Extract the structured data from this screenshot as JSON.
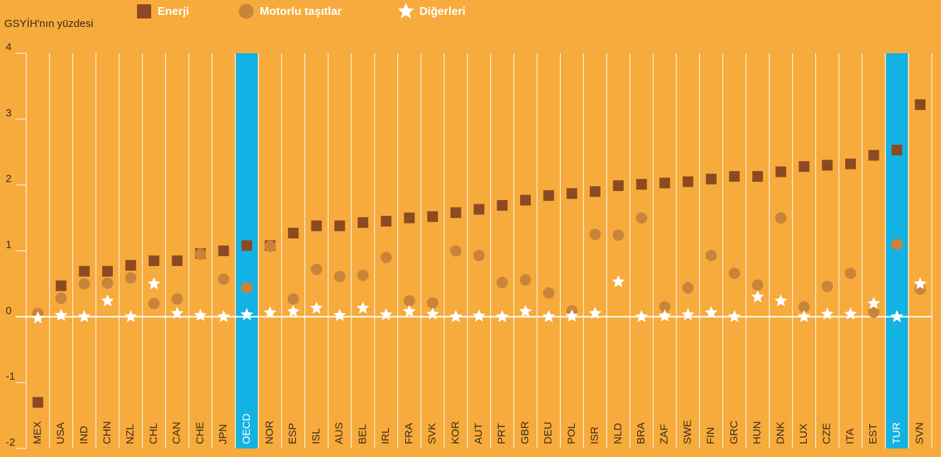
{
  "chart_data": {
    "type": "scatter",
    "ylabel": "GSYİH'nın yüzdesi",
    "categories": [
      "MEX",
      "USA",
      "IND",
      "CHN",
      "NZL",
      "CHL",
      "CAN",
      "CHE",
      "JPN",
      "OECD",
      "NOR",
      "ESP",
      "ISL",
      "AUS",
      "BEL",
      "IRL",
      "FRA",
      "SVK",
      "KOR",
      "AUT",
      "PRT",
      "GBR",
      "DEU",
      "POL",
      "ISR",
      "NLD",
      "BRA",
      "ZAF",
      "SWE",
      "FIN",
      "GRC",
      "HUN",
      "DNK",
      "LUX",
      "CZE",
      "ITA",
      "EST",
      "TUR",
      "SVN"
    ],
    "highlight": [
      9,
      37
    ],
    "highlight_color": "#13b2e4",
    "series": [
      {
        "name": "Enerji",
        "color": "#8b4a22",
        "marker": "square",
        "values": [
          -1.3,
          0.47,
          0.69,
          0.69,
          0.78,
          0.85,
          0.85,
          0.96,
          1.0,
          1.08,
          1.08,
          1.27,
          1.38,
          1.38,
          1.43,
          1.45,
          1.5,
          1.52,
          1.58,
          1.63,
          1.69,
          1.77,
          1.84,
          1.87,
          1.9,
          1.99,
          2.01,
          2.03,
          2.05,
          2.09,
          2.13,
          2.13,
          2.2,
          2.28,
          2.3,
          2.32,
          2.45,
          2.53,
          3.22
        ]
      },
      {
        "name": "Motorlu taşıtlar",
        "color": "#c8853a",
        "marker": "circle",
        "values": [
          0.05,
          0.28,
          0.5,
          0.51,
          0.59,
          0.2,
          0.27,
          0.95,
          0.57,
          0.44,
          1.07,
          0.27,
          0.72,
          0.61,
          0.63,
          0.9,
          0.24,
          0.21,
          1.0,
          0.93,
          0.52,
          0.56,
          0.36,
          0.09,
          1.25,
          1.24,
          1.5,
          0.15,
          0.44,
          0.93,
          0.66,
          0.48,
          1.5,
          0.15,
          0.46,
          0.66,
          0.07,
          1.1,
          0.42
        ]
      },
      {
        "name": "Diğerleri",
        "color": "#ffffff",
        "marker": "star",
        "values": [
          -0.02,
          0.02,
          0.0,
          0.24,
          0.0,
          0.5,
          0.05,
          0.02,
          0.0,
          0.03,
          0.06,
          0.08,
          0.13,
          0.02,
          0.13,
          0.03,
          0.08,
          0.04,
          0.0,
          0.01,
          0.0,
          0.08,
          0.0,
          0.01,
          0.05,
          0.53,
          0.0,
          0.01,
          0.03,
          0.06,
          0.0,
          0.3,
          0.24,
          0.0,
          0.04,
          0.04,
          0.2,
          0.0,
          0.5
        ]
      }
    ],
    "ylim": [
      -2,
      4
    ],
    "yticks": [
      -2,
      -1,
      0,
      1,
      2,
      3,
      4
    ]
  }
}
